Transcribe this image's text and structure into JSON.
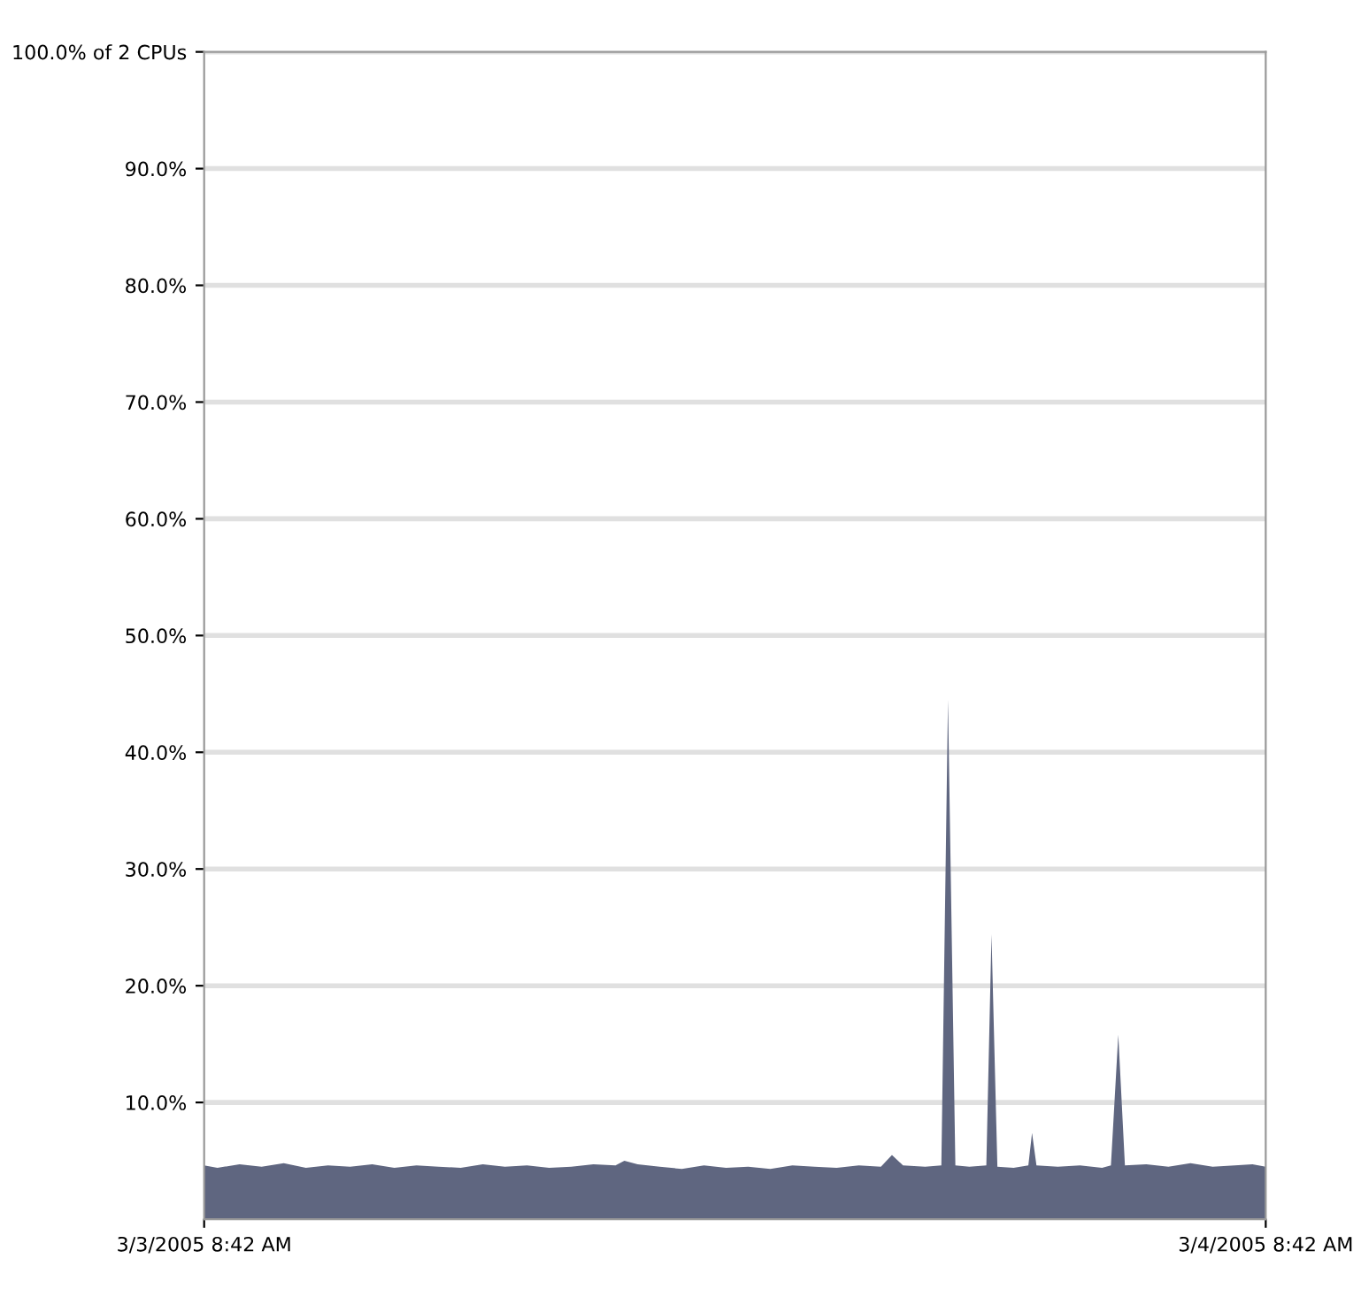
{
  "chart_data": {
    "type": "area",
    "x": [
      "2005-03-03T08:42",
      "2005-03-03T09:00",
      "2005-03-03T09:30",
      "2005-03-03T10:00",
      "2005-03-03T10:30",
      "2005-03-03T11:00",
      "2005-03-03T11:30",
      "2005-03-03T12:00",
      "2005-03-03T12:30",
      "2005-03-03T13:00",
      "2005-03-03T13:30",
      "2005-03-03T14:00",
      "2005-03-03T14:30",
      "2005-03-03T15:00",
      "2005-03-03T15:30",
      "2005-03-03T16:00",
      "2005-03-03T16:30",
      "2005-03-03T17:00",
      "2005-03-03T17:30",
      "2005-03-03T18:00",
      "2005-03-03T18:12",
      "2005-03-03T18:30",
      "2005-03-03T19:00",
      "2005-03-03T19:30",
      "2005-03-03T20:00",
      "2005-03-03T20:30",
      "2005-03-03T21:00",
      "2005-03-03T21:30",
      "2005-03-03T22:00",
      "2005-03-03T22:30",
      "2005-03-03T23:00",
      "2005-03-03T23:30",
      "2005-03-04T00:00",
      "2005-03-04T00:15",
      "2005-03-04T00:30",
      "2005-03-04T01:00",
      "2005-03-04T01:22",
      "2005-03-04T01:31",
      "2005-03-04T01:41",
      "2005-03-04T02:00",
      "2005-03-04T02:23",
      "2005-03-04T02:30",
      "2005-03-04T02:38",
      "2005-03-04T03:00",
      "2005-03-04T03:20",
      "2005-03-04T03:25",
      "2005-03-04T03:31",
      "2005-03-04T04:00",
      "2005-03-04T04:30",
      "2005-03-04T05:00",
      "2005-03-04T05:12",
      "2005-03-04T05:22",
      "2005-03-04T05:31",
      "2005-03-04T06:00",
      "2005-03-04T06:30",
      "2005-03-04T07:00",
      "2005-03-04T07:30",
      "2005-03-04T08:00",
      "2005-03-04T08:24",
      "2005-03-04T08:42"
    ],
    "series": [
      {
        "color": "#5f6680",
        "values": [
          4.6,
          4.4,
          4.7,
          4.5,
          4.8,
          4.4,
          4.6,
          4.5,
          4.7,
          4.4,
          4.6,
          4.5,
          4.4,
          4.7,
          4.5,
          4.6,
          4.4,
          4.5,
          4.7,
          4.6,
          5.0,
          4.7,
          4.5,
          4.3,
          4.6,
          4.4,
          4.5,
          4.3,
          4.6,
          4.5,
          4.4,
          4.6,
          4.5,
          5.5,
          4.6,
          4.5,
          4.6,
          44.5,
          4.6,
          4.5,
          4.6,
          24.4,
          4.5,
          4.4,
          4.6,
          7.4,
          4.6,
          4.5,
          4.6,
          4.4,
          4.6,
          15.8,
          4.6,
          4.7,
          4.5,
          4.8,
          4.5,
          4.6,
          4.7,
          4.5
        ]
      }
    ],
    "xlim": [
      "2005-03-03T08:42",
      "2005-03-04T08:42"
    ],
    "xticks": [
      {
        "value": "2005-03-03T08:42",
        "label": "3/3/2005 8:42 AM"
      },
      {
        "value": "2005-03-04T08:42",
        "label": "3/4/2005 8:42 AM"
      }
    ],
    "ylim": [
      0,
      100
    ],
    "yticks": [
      {
        "value": 10,
        "label": "10.0%"
      },
      {
        "value": 20,
        "label": "20.0%"
      },
      {
        "value": 30,
        "label": "30.0%"
      },
      {
        "value": 40,
        "label": "40.0%"
      },
      {
        "value": 50,
        "label": "50.0%"
      },
      {
        "value": 60,
        "label": "60.0%"
      },
      {
        "value": 70,
        "label": "70.0%"
      },
      {
        "value": 80,
        "label": "80.0%"
      },
      {
        "value": 90,
        "label": "90.0%"
      },
      {
        "value": 100,
        "label": "100.0% of 2 CPUs"
      }
    ],
    "grid": "y"
  }
}
